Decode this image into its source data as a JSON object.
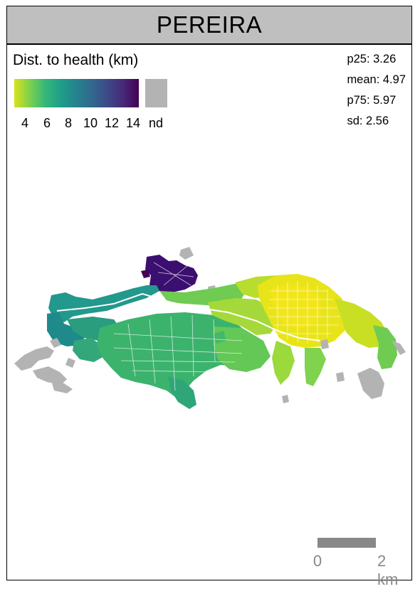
{
  "title": "PEREIRA",
  "legend": {
    "title": "Dist. to health (km)",
    "ticks": [
      "4",
      "6",
      "8",
      "10",
      "12",
      "14"
    ],
    "nd_label": "nd",
    "colors": [
      "#d9e21a",
      "#7dd04e",
      "#35b779",
      "#1f9e89",
      "#26828e",
      "#31688e",
      "#3e4989",
      "#482878",
      "#440154"
    ],
    "nd_color": "#b3b3b3"
  },
  "stats": {
    "p25": "p25: 3.26",
    "mean": "mean: 4.97",
    "p75": "p75: 5.97",
    "sd": "sd: 2.56"
  },
  "scale": {
    "start_label": "0",
    "end_label": "2 km"
  }
}
